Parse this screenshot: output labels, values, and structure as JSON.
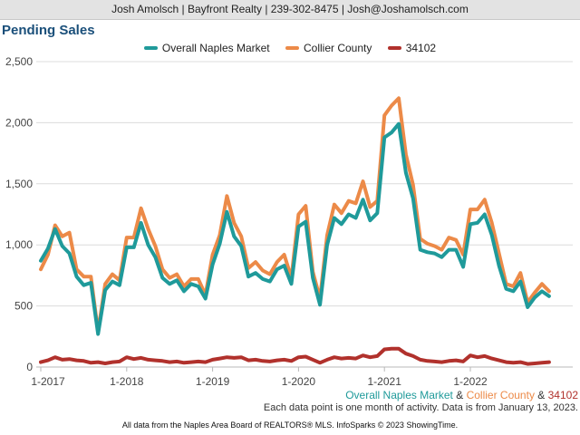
{
  "header": {
    "contact": "Josh Amolsch | Bayfront Realty | 239-302-8475 | Josh@Joshamolsch.com"
  },
  "chart_data": {
    "type": "line",
    "title": "Pending Sales",
    "xlabel": "",
    "ylabel": "",
    "ylim": [
      0,
      2500
    ],
    "yticks": [
      0,
      500,
      1000,
      1500,
      2000,
      2500
    ],
    "ytick_labels": [
      "0",
      "500",
      "1,000",
      "1,500",
      "2,000",
      "2,500"
    ],
    "x_start": "2017-01",
    "x_tick_labels": [
      "1-2017",
      "1-2018",
      "1-2019",
      "1-2020",
      "1-2021",
      "1-2022"
    ],
    "grid": "horizontal",
    "legend_position": "top",
    "series": [
      {
        "name": "Overall Naples Market",
        "color": "#1f9a9a",
        "values": [
          870,
          970,
          1130,
          990,
          930,
          740,
          670,
          690,
          270,
          630,
          700,
          670,
          980,
          980,
          1180,
          1000,
          900,
          730,
          680,
          710,
          620,
          680,
          660,
          560,
          840,
          1010,
          1270,
          1070,
          990,
          740,
          770,
          720,
          700,
          800,
          830,
          680,
          1150,
          1190,
          730,
          510,
          1000,
          1220,
          1170,
          1250,
          1220,
          1370,
          1200,
          1260,
          1880,
          1920,
          1990,
          1590,
          1380,
          960,
          940,
          930,
          900,
          960,
          960,
          820,
          1170,
          1180,
          1250,
          1080,
          830,
          640,
          620,
          700,
          490,
          570,
          620,
          580
        ]
      },
      {
        "name": "Collier County",
        "color": "#ec8a48",
        "values": [
          800,
          920,
          1160,
          1070,
          1100,
          800,
          740,
          740,
          290,
          680,
          760,
          710,
          1060,
          1060,
          1300,
          1130,
          990,
          800,
          730,
          760,
          660,
          720,
          720,
          590,
          920,
          1080,
          1400,
          1180,
          1070,
          810,
          860,
          790,
          760,
          860,
          920,
          730,
          1250,
          1320,
          780,
          560,
          1080,
          1330,
          1260,
          1360,
          1340,
          1520,
          1310,
          1360,
          2060,
          2140,
          2200,
          1740,
          1490,
          1050,
          1010,
          990,
          960,
          1060,
          1040,
          920,
          1290,
          1290,
          1370,
          1180,
          930,
          680,
          660,
          770,
          530,
          610,
          680,
          620
        ]
      },
      {
        "name": "34102",
        "color": "#b1312c",
        "values": [
          40,
          55,
          80,
          60,
          65,
          55,
          50,
          35,
          40,
          30,
          40,
          45,
          80,
          65,
          75,
          60,
          55,
          50,
          40,
          45,
          35,
          40,
          45,
          40,
          60,
          70,
          80,
          75,
          80,
          55,
          60,
          50,
          45,
          55,
          60,
          50,
          80,
          85,
          60,
          35,
          60,
          80,
          70,
          75,
          70,
          95,
          80,
          90,
          145,
          150,
          150,
          110,
          90,
          60,
          50,
          45,
          40,
          50,
          55,
          45,
          95,
          80,
          90,
          70,
          55,
          40,
          35,
          40,
          25,
          30,
          35,
          40
        ]
      }
    ]
  },
  "caption": {
    "series_overall": "Overall Naples Market",
    "sep1": " & ",
    "series_collier": "Collier County",
    "sep2": " & ",
    "series_zip": "34102",
    "note": "Each data point is one month of activity. Data is from January 13, 2023."
  },
  "footer": {
    "source": "All data from the Naples Area Board of REALTORS® MLS. InfoSparks © 2023 ShowingTime."
  }
}
